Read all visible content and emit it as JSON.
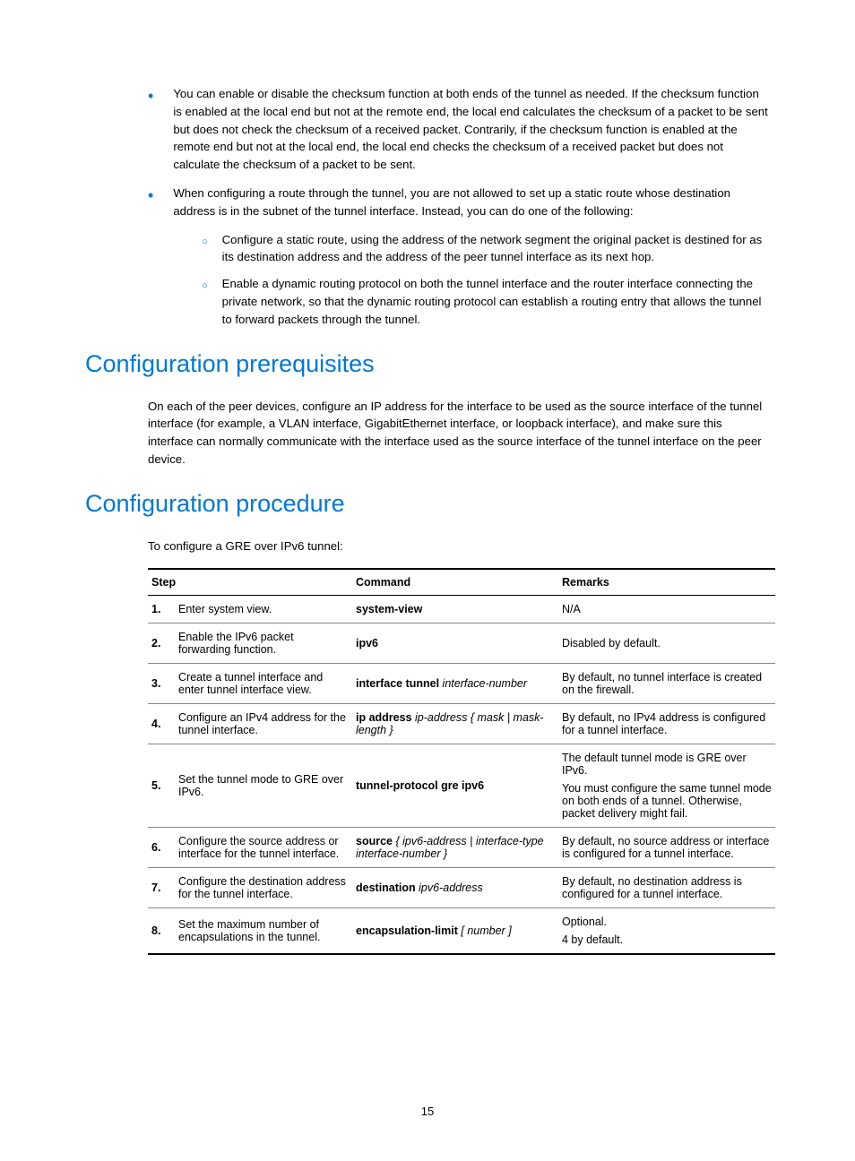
{
  "bullets": [
    "You can enable or disable the checksum function at both ends of the tunnel as needed. If the checksum function is enabled at the local end but not at the remote end, the local end calculates the checksum of a packet to be sent but does not check the checksum of a received packet. Contrarily, if the checksum function is enabled at the remote end but not at the local end, the local end checks the checksum of a received packet but does not calculate the checksum of a packet to be sent.",
    "When configuring a route through the tunnel, you are not allowed to set up a static route whose destination address is in the subnet of the tunnel interface. Instead, you can do one of the following:"
  ],
  "subbullets": [
    "Configure a static route, using the address of the network segment the original packet is destined for as its destination address and the address of the peer tunnel interface as its next hop.",
    "Enable a dynamic routing protocol on both the tunnel interface and the router interface connecting the private network, so that the dynamic routing protocol can establish a routing entry that allows the tunnel to forward packets through the tunnel."
  ],
  "h2a": "Configuration prerequisites",
  "p1": "On each of the peer devices, configure an IP address for the interface to be used as the source interface of the tunnel interface (for example, a VLAN interface, GigabitEthernet interface, or loopback interface), and make sure this interface can normally communicate with the interface used as the source interface of the tunnel interface on the peer device.",
  "h2b": "Configuration procedure",
  "p2": "To configure a GRE over IPv6 tunnel:",
  "table": {
    "head": {
      "step": "Step",
      "cmd": "Command",
      "rem": "Remarks"
    },
    "rows": [
      {
        "n": "1.",
        "title": "Enter system view.",
        "cmd_b": "system-view",
        "cmd_i": "",
        "rems": [
          "N/A"
        ]
      },
      {
        "n": "2.",
        "title": "Enable the IPv6 packet forwarding function.",
        "cmd_b": "ipv6",
        "cmd_i": "",
        "rems": [
          "Disabled by default."
        ]
      },
      {
        "n": "3.",
        "title": "Create a tunnel interface and enter tunnel interface view.",
        "cmd_b": "interface tunnel ",
        "cmd_i": "interface-number",
        "rems": [
          "By default, no tunnel interface is created on the firewall."
        ]
      },
      {
        "n": "4.",
        "title": "Configure an IPv4 address for the tunnel interface.",
        "cmd_b": "ip address ",
        "cmd_i": "ip-address",
        "cmd_tail": " { mask | mask-length }",
        "rems": [
          "By default, no IPv4 address is configured for a tunnel interface."
        ]
      },
      {
        "n": "5.",
        "title": "Set the tunnel mode to GRE over IPv6.",
        "cmd_b": "tunnel-protocol gre ipv6",
        "cmd_i": "",
        "rems": [
          "The default tunnel mode is GRE over IPv6.",
          "You must configure the same tunnel mode on both ends of a tunnel. Otherwise, packet delivery might fail."
        ]
      },
      {
        "n": "6.",
        "title": "Configure the source address or interface for the tunnel interface.",
        "cmd_b": "source ",
        "cmd_i": "",
        "cmd_tail2": "{ ipv6-address | interface-type interface-number }",
        "rems": [
          "By default, no source address or interface is configured for a tunnel interface."
        ]
      },
      {
        "n": "7.",
        "title": "Configure the destination address for the tunnel interface.",
        "cmd_b": "destination ",
        "cmd_i": "ipv6-address",
        "rems": [
          "By default, no destination address is configured for a tunnel interface."
        ]
      },
      {
        "n": "8.",
        "title": "Set the maximum number of encapsulations in the tunnel.",
        "cmd_b": "encapsulation-limit ",
        "cmd_i": "",
        "cmd_brk": "[ number ]",
        "rems": [
          "Optional.",
          "4 by default."
        ]
      }
    ]
  },
  "pagenum": "15"
}
